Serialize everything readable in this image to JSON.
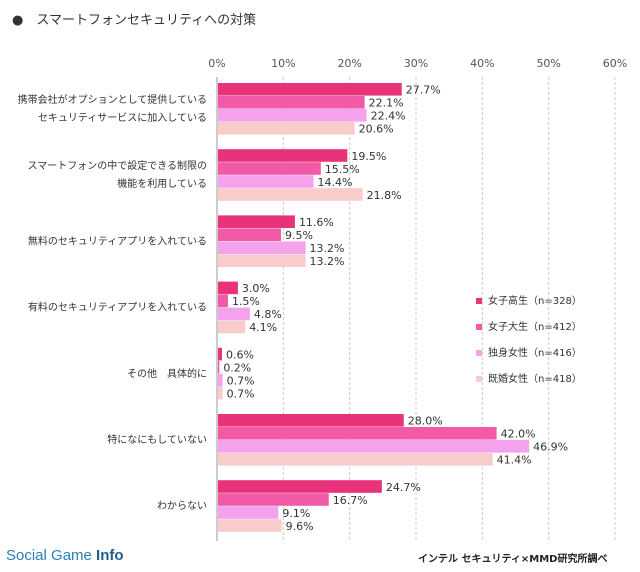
{
  "title": "●　スマートフォンセキュリティへの対策",
  "source": "インテル セキュリティ×MMD研究所調べ",
  "logo": {
    "part1": "Social Game ",
    "part2": "Info"
  },
  "chart_data": {
    "type": "bar",
    "orientation": "horizontal",
    "categories": [
      [
        "携帯会社がオプションとして提供している",
        "セキュリティサービスに加入している"
      ],
      [
        "スマートフォンの中で設定できる制限の",
        "機能を利用している"
      ],
      [
        "無料のセキュリティアプリを入れている"
      ],
      [
        "有料のセキュリティアプリを入れている"
      ],
      [
        "その他　具体的に"
      ],
      [
        "特になにもしていない"
      ],
      [
        "わからない"
      ]
    ],
    "series": [
      {
        "name": "女子高生（n=328）",
        "color": "#e8337a",
        "values": [
          27.7,
          19.5,
          11.6,
          3.0,
          0.6,
          28.0,
          24.7
        ]
      },
      {
        "name": "女子大生（n=412）",
        "color": "#f25aa8",
        "values": [
          22.1,
          15.5,
          9.5,
          1.5,
          0.2,
          42.0,
          16.7
        ]
      },
      {
        "name": "独身女性（n=416）",
        "color": "#f5a2ec",
        "values": [
          22.4,
          14.4,
          13.2,
          4.8,
          0.7,
          46.9,
          9.1
        ]
      },
      {
        "name": "既婚女性（n=418）",
        "color": "#f9cccc",
        "values": [
          20.6,
          21.8,
          13.2,
          4.1,
          0.7,
          41.4,
          9.6
        ]
      }
    ],
    "xlim": [
      0,
      60
    ],
    "xticks": [
      "0%",
      "10%",
      "20%",
      "30%",
      "40%",
      "50%",
      "60%"
    ],
    "value_suffix": "%",
    "grid": true,
    "legend_position": "right"
  }
}
